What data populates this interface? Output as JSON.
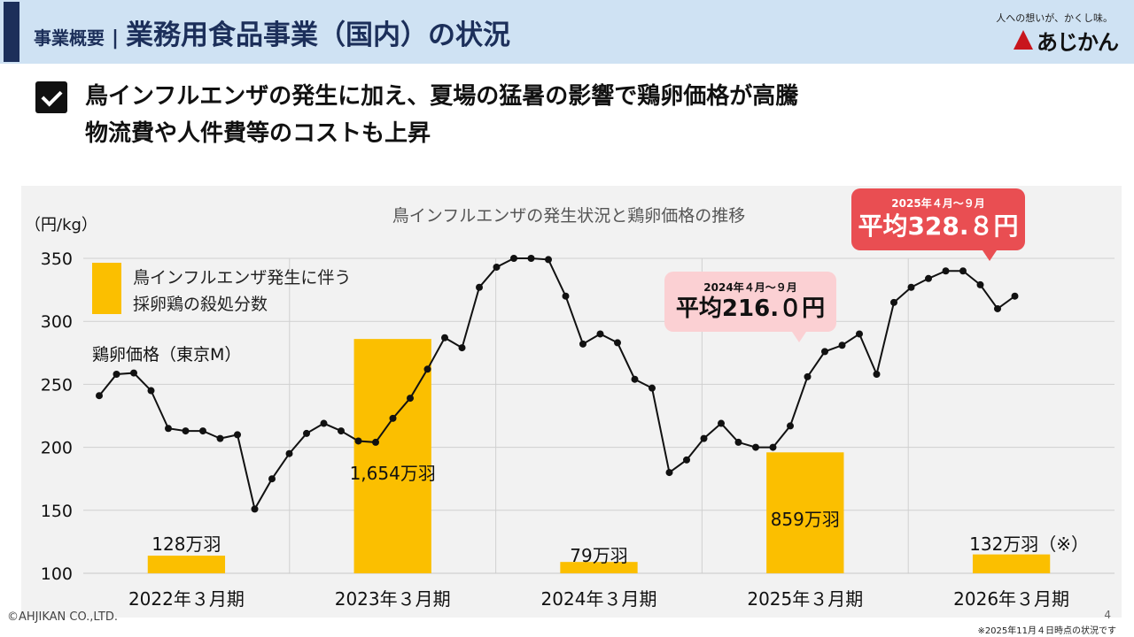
{
  "header": {
    "section": "事業概要",
    "separator": "|",
    "title": "業務用食品事業（国内）の状況",
    "tagline": "人への想いが、かくし味。",
    "logo_text": "あじかん",
    "bar_color": "#1c2f5a",
    "bg_color": "#cfe2f3"
  },
  "headline": {
    "line1": "鳥インフルエンザの発生に加え、夏場の猛暑の影響で鶏卵価格が高騰",
    "line2": "物流費や人件費等のコストも上昇",
    "icon": "checkbox-icon"
  },
  "callouts": {
    "fy2024": {
      "period": "2024年４月～９月",
      "value": "平均216.０円"
    },
    "fy2025": {
      "period": "2025年４月～９月",
      "value": "平均328.８円"
    }
  },
  "chart_data": {
    "type": "bar+line",
    "title": "鳥インフルエンザの発生状況と鶏卵価格の推移",
    "ylabel": "（円/kg）",
    "ylim": [
      100,
      350
    ],
    "yticks": [
      100,
      150,
      200,
      250,
      300,
      350
    ],
    "grid": true,
    "categories": [
      "2022年３月期",
      "2023年３月期",
      "2024年３月期",
      "2025年３月期",
      "2026年３月期"
    ],
    "bar_series": {
      "name": "鳥インフルエンザ発生に伴う採卵鶏の殺処分数",
      "name_lines": [
        "鳥インフルエンザ発生に伴う",
        "採卵鶏の殺処分数"
      ],
      "color": "#fbbf00",
      "values_price_scale": [
        114,
        286,
        109,
        196,
        115
      ],
      "labels": [
        "128万羽",
        "1,654万羽",
        "79万羽",
        "859万羽",
        "132万羽（※）"
      ]
    },
    "line_series": {
      "name": "鶏卵価格（東京M）",
      "color": "#111111",
      "values": [
        241,
        258,
        259,
        245,
        215,
        213,
        213,
        207,
        210,
        151,
        175,
        195,
        211,
        219,
        213,
        205,
        204,
        223,
        239,
        262,
        287,
        279,
        327,
        343,
        350,
        350,
        349,
        320,
        282,
        290,
        283,
        254,
        247,
        180,
        190,
        207,
        219,
        204,
        200,
        200,
        217,
        256,
        276,
        281,
        290,
        258,
        315,
        327,
        334,
        340,
        340,
        329,
        310,
        320
      ]
    }
  },
  "footer": {
    "copyright": "©AHJIKAN CO.,LTD.",
    "page": "4",
    "note": "※2025年11月４日時点の状況です"
  }
}
